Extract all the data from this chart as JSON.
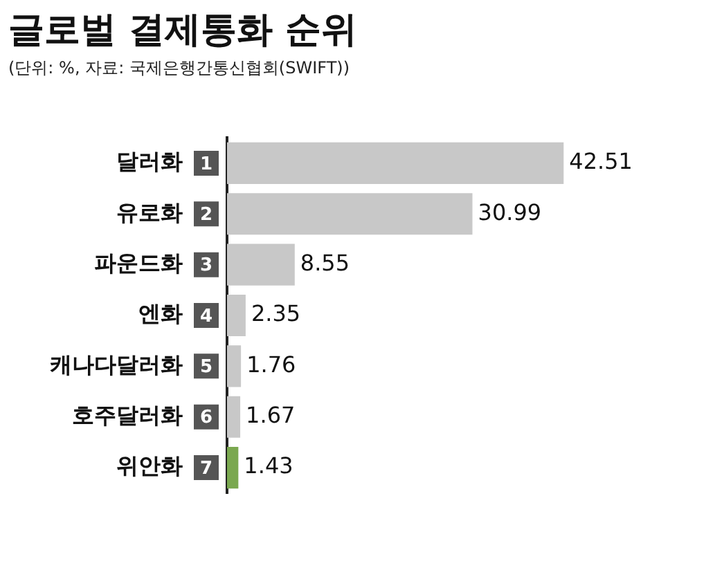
{
  "chart_data": {
    "type": "bar",
    "orientation": "horizontal",
    "title": "글로벌 결제통화 순위",
    "subtitle": "(단위: %, 자료: 국제은행간통신협회(SWIFT))",
    "categories": [
      "달러화",
      "유로화",
      "파운드화",
      "엔화",
      "캐나다달러화",
      "호주달러화",
      "위안화"
    ],
    "values": [
      42.51,
      30.99,
      8.55,
      2.35,
      1.76,
      1.67,
      1.43
    ],
    "colors": [
      "#c8c8c8",
      "#c8c8c8",
      "#c8c8c8",
      "#c8c8c8",
      "#c8c8c8",
      "#c8c8c8",
      "#7aa84f"
    ],
    "value_labels": [
      "42.51",
      "30.99",
      "8.55",
      "2.35",
      "1.76",
      "1.67",
      "1.43"
    ],
    "annotations": [
      "1",
      "2",
      "3",
      "4",
      "5",
      "6",
      "7"
    ],
    "grid": false,
    "legend": false
  }
}
